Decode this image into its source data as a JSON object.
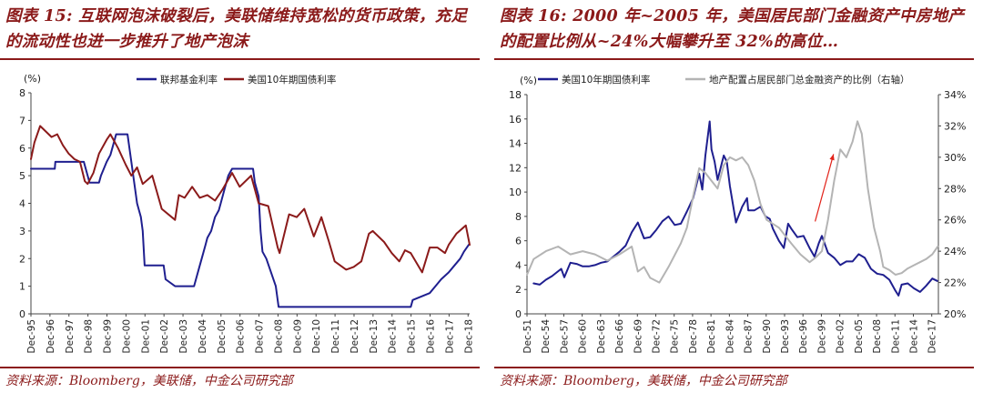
{
  "panels": [
    {
      "title": "图表 15: 互联网泡沫破裂后，美联储维持宽松的货币政策，充足的流动性也进一步推升了地产泡沫",
      "source": "资料来源：Bloomberg，美联储，中金公司研究部",
      "chart_data": {
        "type": "line",
        "unit_label": "(%)",
        "ylim": [
          0,
          8
        ],
        "yticks": [
          0,
          1,
          2,
          3,
          4,
          5,
          6,
          7,
          8
        ],
        "x_range": [
          1995.917,
          2019.0
        ],
        "x_tick_labels": [
          "Dec-95",
          "Dec-96",
          "Dec-97",
          "Dec-98",
          "Dec-99",
          "Dec-00",
          "Dec-01",
          "Dec-02",
          "Dec-03",
          "Dec-04",
          "Dec-05",
          "Dec-06",
          "Dec-07",
          "Dec-08",
          "Dec-09",
          "Dec-10",
          "Dec-11",
          "Dec-12",
          "Dec-13",
          "Dec-14",
          "Dec-15",
          "Dec-16",
          "Dec-17",
          "Dec-18"
        ],
        "x_tick_values": [
          1995.917,
          1996.917,
          1997.917,
          1998.917,
          1999.917,
          2000.917,
          2001.917,
          2002.917,
          2003.917,
          2004.917,
          2005.917,
          2006.917,
          2007.917,
          2008.917,
          2009.917,
          2010.917,
          2011.917,
          2012.917,
          2013.917,
          2014.917,
          2015.917,
          2016.917,
          2017.917,
          2018.917
        ],
        "grid": false,
        "legend_position": "top",
        "series": [
          {
            "name": "联邦基金利率",
            "color": "#1f1f8f",
            "line_width": 2,
            "x": [
              1995.917,
              1996.0,
              1997.17,
              1997.2,
              1998.7,
              1998.8,
              1998.9,
              1999.0,
              1999.5,
              1999.6,
              1999.9,
              2000.1,
              2000.2,
              2000.4,
              2001.0,
              2001.1,
              2001.2,
              2001.3,
              2001.4,
              2001.5,
              2001.6,
              2001.7,
              2001.8,
              2001.9,
              2002.9,
              2003.0,
              2003.5,
              2004.5,
              2004.6,
              2004.8,
              2004.9,
              2005.1,
              2005.2,
              2005.4,
              2005.6,
              2005.8,
              2005.9,
              2006.1,
              2006.3,
              2006.5,
              2007.6,
              2007.7,
              2007.8,
              2007.9,
              2008.0,
              2008.1,
              2008.3,
              2008.8,
              2008.95,
              2015.9,
              2016.0,
              2016.9,
              2017.2,
              2017.5,
              2017.9,
              2018.2,
              2018.5,
              2018.7,
              2018.95
            ],
            "y": [
              5.25,
              5.25,
              5.25,
              5.5,
              5.5,
              5.25,
              5.0,
              4.75,
              4.75,
              5.0,
              5.5,
              5.75,
              6.0,
              6.5,
              6.5,
              6.0,
              5.5,
              5.0,
              4.5,
              4.0,
              3.75,
              3.5,
              3.0,
              1.75,
              1.75,
              1.25,
              1.0,
              1.0,
              1.25,
              1.75,
              2.0,
              2.5,
              2.75,
              3.0,
              3.5,
              3.75,
              4.0,
              4.5,
              5.0,
              5.25,
              5.25,
              4.75,
              4.5,
              4.25,
              3.0,
              2.25,
              2.0,
              1.0,
              0.25,
              0.25,
              0.5,
              0.75,
              1.0,
              1.25,
              1.5,
              1.75,
              2.0,
              2.25,
              2.5
            ]
          },
          {
            "name": "美国10年期国债利率",
            "color": "#8b1a1a",
            "line_width": 2,
            "x": [
              1995.917,
              1996.1,
              1996.4,
              1996.7,
              1997.0,
              1997.3,
              1997.6,
              1997.9,
              1998.2,
              1998.5,
              1998.75,
              1998.9,
              1999.2,
              1999.5,
              1999.9,
              2000.1,
              2000.5,
              2000.9,
              2001.2,
              2001.5,
              2001.8,
              2002.3,
              2002.8,
              2003.5,
              2003.7,
              2004.0,
              2004.4,
              2004.8,
              2005.2,
              2005.6,
              2006.0,
              2006.5,
              2006.9,
              2007.5,
              2007.9,
              2008.4,
              2008.9,
              2009.0,
              2009.5,
              2009.9,
              2010.3,
              2010.8,
              2011.2,
              2011.6,
              2011.9,
              2012.5,
              2012.9,
              2013.3,
              2013.7,
              2013.9,
              2014.5,
              2014.9,
              2015.3,
              2015.6,
              2015.9,
              2016.5,
              2016.9,
              2017.3,
              2017.7,
              2017.9,
              2018.3,
              2018.8,
              2019.0
            ],
            "y": [
              5.6,
              6.2,
              6.8,
              6.6,
              6.4,
              6.5,
              6.1,
              5.8,
              5.6,
              5.5,
              4.8,
              4.7,
              5.1,
              5.8,
              6.3,
              6.5,
              6.0,
              5.4,
              5.0,
              5.3,
              4.7,
              5.0,
              3.8,
              3.4,
              4.3,
              4.2,
              4.6,
              4.2,
              4.3,
              4.1,
              4.5,
              5.1,
              4.6,
              5.0,
              4.0,
              3.9,
              2.4,
              2.2,
              3.6,
              3.5,
              3.8,
              2.8,
              3.5,
              2.6,
              1.9,
              1.6,
              1.7,
              1.9,
              2.9,
              3.0,
              2.6,
              2.2,
              1.9,
              2.3,
              2.2,
              1.5,
              2.4,
              2.4,
              2.2,
              2.5,
              2.9,
              3.2,
              2.5
            ]
          }
        ]
      }
    },
    {
      "title": "图表 16: 2000 年~2005 年，美国居民部门金融资产中房地产的配置比例从~24%大幅攀升至 32%的高位…",
      "source": "资料来源：Bloomberg，美联储，中金公司研究部",
      "chart_data": {
        "type": "line",
        "unit_label": "(%)",
        "ylim": [
          0,
          18
        ],
        "yticks": [
          0,
          2,
          4,
          6,
          8,
          10,
          12,
          14,
          16,
          18
        ],
        "y2lim": [
          20,
          34
        ],
        "y2ticks": [
          20,
          22,
          24,
          26,
          28,
          30,
          32,
          34
        ],
        "y2_tick_labels": [
          "20%",
          "22%",
          "24%",
          "26%",
          "28%",
          "30%",
          "32%",
          "34%"
        ],
        "x_range": [
          1951.917,
          2019.0
        ],
        "x_tick_labels": [
          "Dec-51",
          "Dec-54",
          "Dec-57",
          "Dec-60",
          "Dec-63",
          "Dec-66",
          "Dec-69",
          "Dec-72",
          "Dec-75",
          "Dec-78",
          "Dec-81",
          "Dec-84",
          "Dec-87",
          "Dec-90",
          "Dec-93",
          "Dec-96",
          "Dec-99",
          "Dec-02",
          "Dec-05",
          "Dec-08",
          "Dec-11",
          "Dec-14",
          "Dec-17"
        ],
        "x_tick_values": [
          1951.917,
          1954.917,
          1957.917,
          1960.917,
          1963.917,
          1966.917,
          1969.917,
          1972.917,
          1975.917,
          1978.917,
          1981.917,
          1984.917,
          1987.917,
          1990.917,
          1993.917,
          1996.917,
          1999.917,
          2002.917,
          2005.917,
          2008.917,
          2011.917,
          2014.917,
          2017.917
        ],
        "grid": false,
        "legend_position": "top",
        "series": [
          {
            "name": "美国10年期国债利率",
            "color": "#1f1f8f",
            "line_width": 2,
            "axis": "left",
            "x": [
              1953.0,
              1954.0,
              1955.0,
              1956.0,
              1957.5,
              1958.0,
              1959.0,
              1960.0,
              1961.0,
              1962.0,
              1963.0,
              1964.0,
              1965.0,
              1966.0,
              1967.0,
              1968.0,
              1969.0,
              1970.0,
              1971.0,
              1972.0,
              1973.0,
              1974.0,
              1975.0,
              1976.0,
              1977.0,
              1978.0,
              1979.0,
              1980.0,
              1980.5,
              1981.0,
              1981.7,
              1982.0,
              1982.5,
              1983.0,
              1984.0,
              1984.5,
              1985.0,
              1986.0,
              1987.0,
              1987.8,
              1988.0,
              1989.0,
              1990.0,
              1990.8,
              1991.5,
              1992.0,
              1993.0,
              1993.8,
              1994.5,
              1995.0,
              1996.0,
              1997.0,
              1998.0,
              1998.8,
              1999.5,
              2000.0,
              2001.0,
              2002.0,
              2003.0,
              2004.0,
              2005.0,
              2006.0,
              2007.0,
              2008.0,
              2009.0,
              2010.0,
              2011.0,
              2012.0,
              2012.5,
              2013.0,
              2014.0,
              2015.0,
              2016.0,
              2017.0,
              2018.0,
              2018.8
            ],
            "y": [
              2.5,
              2.4,
              2.8,
              3.1,
              3.7,
              3.0,
              4.2,
              4.1,
              3.9,
              3.9,
              4.0,
              4.2,
              4.3,
              4.7,
              5.1,
              5.6,
              6.7,
              7.5,
              6.2,
              6.3,
              6.9,
              7.6,
              8.0,
              7.3,
              7.4,
              8.4,
              9.5,
              11.5,
              10.2,
              13.0,
              15.8,
              13.5,
              12.5,
              11.0,
              13.0,
              12.5,
              10.5,
              7.5,
              8.8,
              9.5,
              8.5,
              8.5,
              8.8,
              8.0,
              7.8,
              7.0,
              6.0,
              5.4,
              7.4,
              7.0,
              6.3,
              6.4,
              5.4,
              4.7,
              5.8,
              6.4,
              5.0,
              4.6,
              4.0,
              4.3,
              4.3,
              4.9,
              4.6,
              3.7,
              3.3,
              3.2,
              2.8,
              1.9,
              1.5,
              2.4,
              2.5,
              2.1,
              1.8,
              2.3,
              2.9,
              2.7
            ]
          },
          {
            "name": "地产配置占居民部门总金融资产的比例（右轴）",
            "color": "#b4b4b4",
            "line_width": 2,
            "axis": "right",
            "x": [
              1951.917,
              1953.0,
              1955.0,
              1957.0,
              1959.0,
              1961.0,
              1963.0,
              1965.0,
              1967.0,
              1969.0,
              1970.0,
              1971.0,
              1972.0,
              1973.5,
              1975.0,
              1977.0,
              1978.0,
              1979.0,
              1980.0,
              1981.0,
              1982.0,
              1983.0,
              1984.0,
              1985.0,
              1986.0,
              1987.0,
              1988.0,
              1989.0,
              1990.0,
              1991.0,
              1993.0,
              1995.0,
              1996.5,
              1998.0,
              1999.0,
              2000.0,
              2001.0,
              2002.0,
              2003.0,
              2004.0,
              2005.0,
              2005.8,
              2006.5,
              2007.5,
              2008.5,
              2009.5,
              2010.0,
              2011.0,
              2012.0,
              2013.0,
              2014.0,
              2015.0,
              2016.0,
              2017.0,
              2018.0,
              2018.9
            ],
            "y": [
              22.5,
              23.5,
              24.0,
              24.3,
              23.8,
              24.0,
              23.8,
              23.4,
              23.8,
              24.3,
              22.7,
              23.0,
              22.3,
              22.0,
              23.0,
              24.5,
              25.5,
              27.5,
              29.3,
              29.0,
              28.5,
              28.0,
              29.5,
              30.0,
              29.8,
              30.0,
              29.5,
              28.5,
              27.0,
              26.0,
              25.5,
              24.5,
              23.8,
              23.3,
              23.6,
              24.0,
              26.0,
              28.5,
              30.5,
              30.0,
              31.0,
              32.3,
              31.5,
              28.0,
              25.5,
              24.0,
              23.0,
              22.8,
              22.5,
              22.6,
              22.9,
              23.1,
              23.3,
              23.5,
              23.8,
              24.3
            ]
          }
        ],
        "annotations": [
          {
            "type": "arrow",
            "color": "#e2231a",
            "x1": 1998.9,
            "y1": 25.9,
            "x2": 2001.9,
            "y2": 30.2
          }
        ]
      }
    }
  ]
}
